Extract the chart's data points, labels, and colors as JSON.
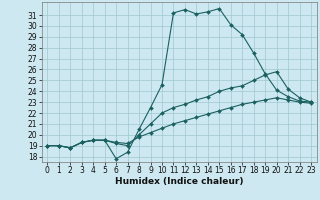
{
  "title": "",
  "xlabel": "Humidex (Indice chaleur)",
  "background_color": "#cde8f0",
  "grid_color": "#a0c8d0",
  "line_color": "#1a6060",
  "xlim": [
    -0.5,
    23.5
  ],
  "ylim": [
    17.5,
    32.2
  ],
  "yticks": [
    18,
    19,
    20,
    21,
    22,
    23,
    24,
    25,
    26,
    27,
    28,
    29,
    30,
    31
  ],
  "xticks": [
    0,
    1,
    2,
    3,
    4,
    5,
    6,
    7,
    8,
    9,
    10,
    11,
    12,
    13,
    14,
    15,
    16,
    17,
    18,
    19,
    20,
    21,
    22,
    23
  ],
  "series1_x": [
    0,
    1,
    2,
    3,
    4,
    5,
    6,
    7,
    8,
    9,
    10,
    11,
    12,
    13,
    14,
    15,
    16,
    17,
    18,
    19,
    20,
    21,
    22,
    23
  ],
  "series1_y": [
    19.0,
    19.0,
    18.8,
    19.3,
    19.5,
    19.5,
    17.8,
    18.4,
    20.5,
    22.5,
    24.6,
    31.2,
    31.5,
    31.1,
    31.3,
    31.6,
    30.1,
    29.2,
    27.5,
    25.6,
    24.1,
    23.5,
    23.1,
    23.0
  ],
  "series2_x": [
    0,
    1,
    2,
    3,
    4,
    5,
    6,
    7,
    8,
    9,
    10,
    11,
    12,
    13,
    14,
    15,
    16,
    17,
    18,
    19,
    20,
    21,
    22,
    23
  ],
  "series2_y": [
    19.0,
    19.0,
    18.8,
    19.3,
    19.5,
    19.5,
    19.2,
    19.0,
    20.0,
    21.0,
    22.0,
    22.5,
    22.8,
    23.2,
    23.5,
    24.0,
    24.3,
    24.5,
    25.0,
    25.5,
    25.8,
    24.2,
    23.4,
    23.0
  ],
  "series3_x": [
    0,
    1,
    2,
    3,
    4,
    5,
    6,
    7,
    8,
    9,
    10,
    11,
    12,
    13,
    14,
    15,
    16,
    17,
    18,
    19,
    20,
    21,
    22,
    23
  ],
  "series3_y": [
    19.0,
    19.0,
    18.8,
    19.3,
    19.5,
    19.5,
    19.3,
    19.2,
    19.8,
    20.2,
    20.6,
    21.0,
    21.3,
    21.6,
    21.9,
    22.2,
    22.5,
    22.8,
    23.0,
    23.2,
    23.4,
    23.2,
    23.0,
    22.9
  ],
  "tick_fontsize": 5.5,
  "xlabel_fontsize": 6.5
}
